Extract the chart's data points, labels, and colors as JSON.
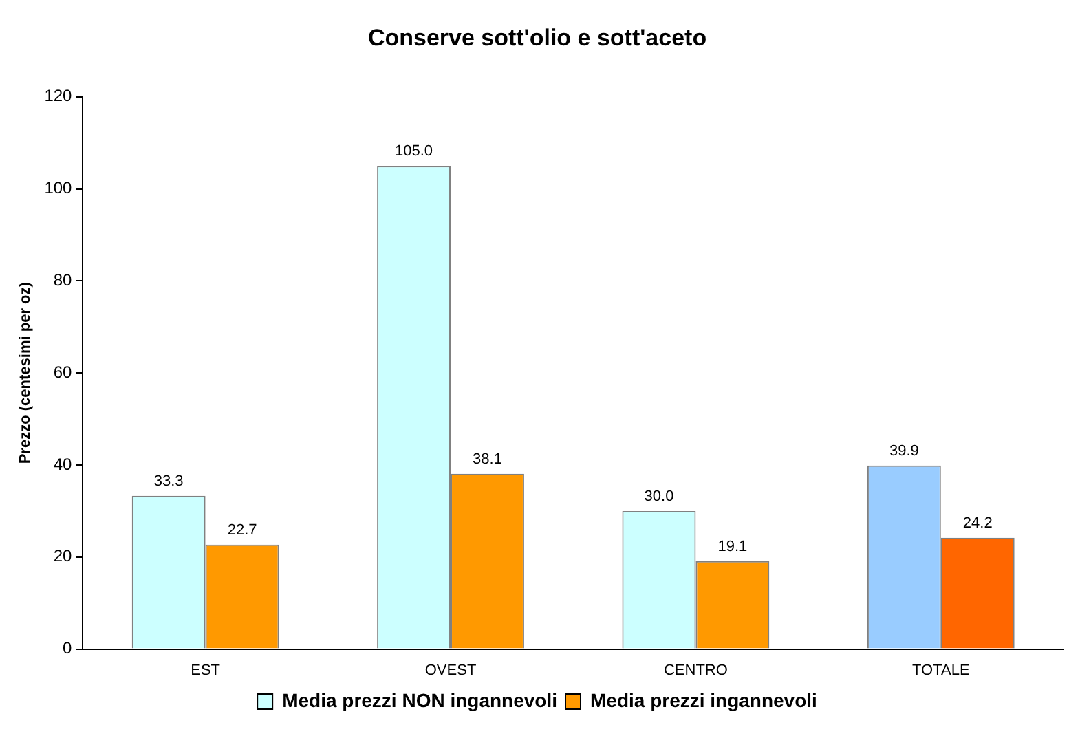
{
  "chart_data": {
    "type": "bar",
    "title": "Conserve sott'olio e sott'aceto",
    "ylabel": "Prezzo (centesimi per oz)",
    "categories": [
      "EST",
      "OVEST",
      "CENTRO",
      "TOTALE"
    ],
    "series": [
      {
        "name": "Media prezzi NON ingannevoli",
        "color": "#ccffff",
        "colors": [
          "#ccffff",
          "#ccffff",
          "#ccffff",
          "#99ccff"
        ],
        "values": [
          33.3,
          105.0,
          30.0,
          39.9
        ],
        "value_labels": [
          "33.3",
          "105.0",
          "30.0",
          "39.9"
        ]
      },
      {
        "name": "Media prezzi ingannevoli",
        "color": "#ff9900",
        "colors": [
          "#ff9900",
          "#ff9900",
          "#ff9900",
          "#ff6600"
        ],
        "values": [
          22.7,
          38.1,
          19.1,
          24.2
        ],
        "value_labels": [
          "22.7",
          "38.1",
          "19.1",
          "24.2"
        ]
      }
    ],
    "ylim": [
      0,
      120
    ],
    "yticks": [
      0,
      20,
      40,
      60,
      80,
      100,
      120
    ],
    "grid": false,
    "legend": "bottom"
  }
}
